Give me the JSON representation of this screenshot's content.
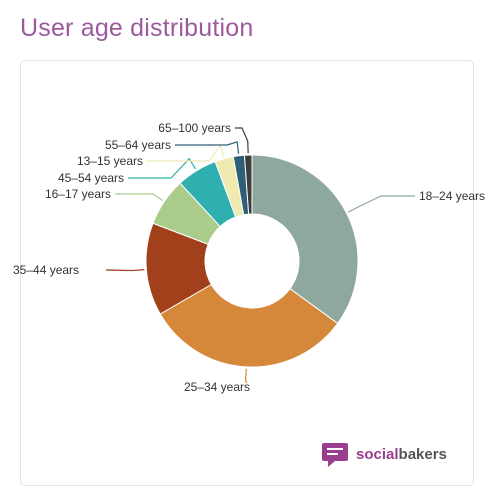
{
  "page": {
    "title": "User age distribution"
  },
  "brand": {
    "name_accent": "social",
    "name_rest": "bakers",
    "color": "#9b3d8f"
  },
  "chart_data": {
    "type": "pie",
    "subtype": "donut",
    "title": "",
    "series": [
      {
        "name": "18–24 years",
        "value": 31,
        "color": "#8fa89d"
      },
      {
        "name": "25–34 years",
        "value": 28,
        "color": "#d5883a"
      },
      {
        "name": "35–44 years",
        "value": 12.5,
        "color": "#a2401b"
      },
      {
        "name": "16–17 years",
        "value": 6.5,
        "color": "#a9cc8b"
      },
      {
        "name": "45–54 years",
        "value": 5.5,
        "color": "#2fafaf"
      },
      {
        "name": "13–15 years",
        "value": 2.5,
        "color": "#eeeab0"
      },
      {
        "name": "55–64 years",
        "value": 1.5,
        "color": "#2f5e77"
      },
      {
        "name": "65–100 years",
        "value": 1.0,
        "color": "#3d3d3d"
      }
    ],
    "legend": "none",
    "labels": "outside-with-leader-lines"
  }
}
